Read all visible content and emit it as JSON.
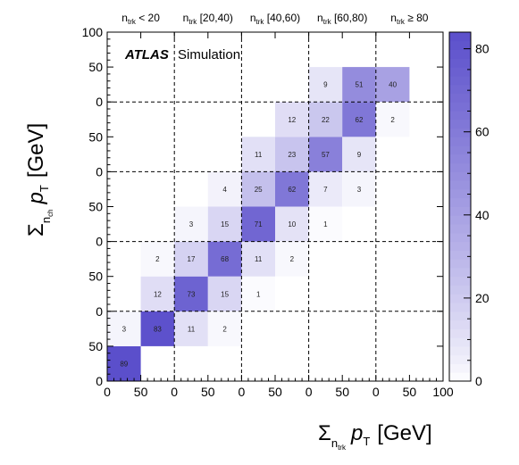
{
  "chart_data": {
    "type": "heatmap",
    "x_panel_tick_labels": [
      "0",
      "50",
      "0",
      "50",
      "0",
      "50",
      "0",
      "50",
      "0",
      "50",
      "100"
    ],
    "y_panel_tick_labels": [
      "0",
      "50",
      "0",
      "50",
      "0",
      "50",
      "0",
      "50",
      "0",
      "50",
      "100"
    ],
    "column_headers": [
      {
        "base": "n",
        "sub": "trk",
        "suffix": " < 20"
      },
      {
        "base": "n",
        "sub": "trk",
        "suffix": " [20,40)"
      },
      {
        "base": "n",
        "sub": "trk",
        "suffix": " [40,60)"
      },
      {
        "base": "n",
        "sub": "trk",
        "suffix": " [60,80)"
      },
      {
        "base": "n",
        "sub": "trk",
        "suffix": " ≥ 80"
      }
    ],
    "xlabel": {
      "sigma": "Σ",
      "sub1": "n",
      "sub2": "trk",
      "var": "p",
      "var_sub": "T",
      "unit": "[GeV]"
    },
    "ylabel": {
      "sigma": "Σ",
      "sub1": "n",
      "sub2": "ch",
      "var": "p",
      "var_sub": "T",
      "unit": "[GeV]"
    },
    "experiment": {
      "name": "ATLAS",
      "label": "Simulation"
    },
    "colorbar": {
      "min": 0,
      "max": 84,
      "ticks": [
        "0",
        "20",
        "40",
        "60",
        "80"
      ],
      "low_color": "#ffffff",
      "high_color": "#5b4fcb"
    },
    "bins_x_per_panel": 2,
    "bins_y_per_panel": 2,
    "cells": [
      {
        "col": 0,
        "row": 0,
        "value": 89,
        "label": "89"
      },
      {
        "col": 0,
        "row": 1,
        "value": 3,
        "label": "3"
      },
      {
        "col": 1,
        "row": 1,
        "value": 83,
        "label": "83"
      },
      {
        "col": 2,
        "row": 1,
        "value": 11,
        "label": "11"
      },
      {
        "col": 3,
        "row": 1,
        "value": 2,
        "label": "2"
      },
      {
        "col": 1,
        "row": 2,
        "value": 12,
        "label": "12"
      },
      {
        "col": 2,
        "row": 2,
        "value": 73,
        "label": "73"
      },
      {
        "col": 3,
        "row": 2,
        "value": 15,
        "label": "15"
      },
      {
        "col": 4,
        "row": 2,
        "value": 1,
        "label": "1"
      },
      {
        "col": 1,
        "row": 3,
        "value": 2,
        "label": "2"
      },
      {
        "col": 2,
        "row": 3,
        "value": 17,
        "label": "17"
      },
      {
        "col": 3,
        "row": 3,
        "value": 68,
        "label": "68"
      },
      {
        "col": 4,
        "row": 3,
        "value": 11,
        "label": "11"
      },
      {
        "col": 5,
        "row": 3,
        "value": 2,
        "label": "2"
      },
      {
        "col": 2,
        "row": 4,
        "value": 3,
        "label": "3"
      },
      {
        "col": 3,
        "row": 4,
        "value": 15,
        "label": "15"
      },
      {
        "col": 4,
        "row": 4,
        "value": 71,
        "label": "71"
      },
      {
        "col": 5,
        "row": 4,
        "value": 10,
        "label": "10"
      },
      {
        "col": 6,
        "row": 4,
        "value": 1,
        "label": "1"
      },
      {
        "col": 3,
        "row": 5,
        "value": 4,
        "label": "4"
      },
      {
        "col": 4,
        "row": 5,
        "value": 25,
        "label": "25"
      },
      {
        "col": 5,
        "row": 5,
        "value": 62,
        "label": "62"
      },
      {
        "col": 6,
        "row": 5,
        "value": 7,
        "label": "7"
      },
      {
        "col": 7,
        "row": 5,
        "value": 3,
        "label": "3"
      },
      {
        "col": 4,
        "row": 6,
        "value": 11,
        "label": "11"
      },
      {
        "col": 5,
        "row": 6,
        "value": 23,
        "label": "23"
      },
      {
        "col": 6,
        "row": 6,
        "value": 57,
        "label": "57"
      },
      {
        "col": 7,
        "row": 6,
        "value": 9,
        "label": "9"
      },
      {
        "col": 5,
        "row": 7,
        "value": 12,
        "label": "12"
      },
      {
        "col": 6,
        "row": 7,
        "value": 22,
        "label": "22"
      },
      {
        "col": 7,
        "row": 7,
        "value": 62,
        "label": "62"
      },
      {
        "col": 8,
        "row": 7,
        "value": 2,
        "label": "2"
      },
      {
        "col": 6,
        "row": 8,
        "value": 9,
        "label": "9"
      },
      {
        "col": 7,
        "row": 8,
        "value": 51,
        "label": "51"
      },
      {
        "col": 8,
        "row": 8,
        "value": 40,
        "label": "40"
      }
    ]
  }
}
